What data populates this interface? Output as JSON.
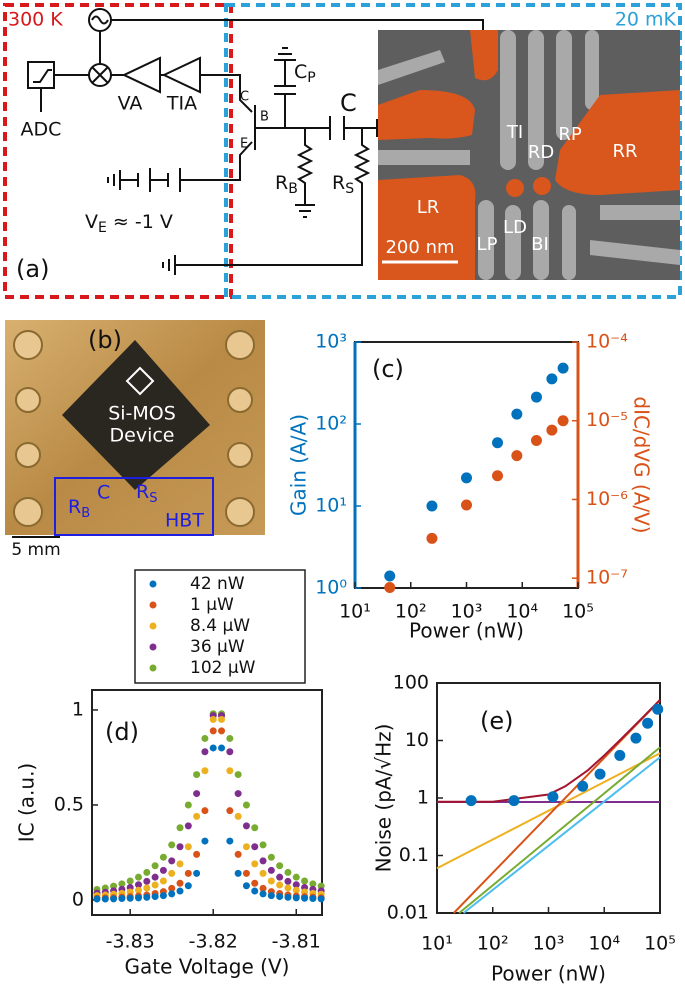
{
  "panel_a": {
    "label": "(a)",
    "room_temp": "300 K",
    "cold_temp": "20 mK",
    "adc": "ADC",
    "va": "VA",
    "tia": "TIA",
    "collector": "C",
    "base": "B",
    "emitter": "E",
    "cp": {
      "main": "C",
      "sub": "P"
    },
    "c": "C",
    "rb": {
      "main": "R",
      "sub": "B"
    },
    "rs": {
      "main": "R",
      "sub": "S"
    },
    "ve": {
      "main": "V",
      "sub": "E",
      "rest": " ≈ -1 V"
    },
    "sem_labels": [
      "TI",
      "RD",
      "RP",
      "RR",
      "LR",
      "LD",
      "LP",
      "BI"
    ],
    "scale_bar": "200 nm"
  },
  "panel_b": {
    "label": "(b)",
    "device": [
      "Si-MOS",
      "Device"
    ],
    "rb": {
      "main": "R",
      "sub": "B"
    },
    "c": "C",
    "rs": {
      "main": "R",
      "sub": "S"
    },
    "hbt": "HBT",
    "scale_bar": "5 mm"
  },
  "chart_data": [
    {
      "type": "scatter",
      "label": "(c)",
      "xlabel": "Power (nW)",
      "ylabel": "Gain (A/A)",
      "y2label": "dIC/dVG (A/V)",
      "xscale": "log",
      "yscale": "log",
      "y2scale": "log",
      "xlim": [
        10,
        100000
      ],
      "xticks": [
        {
          "value": 10,
          "label": "10¹"
        },
        {
          "value": 100,
          "label": "10²"
        },
        {
          "value": 1000,
          "label": "10³"
        },
        {
          "value": 10000,
          "label": "10⁴"
        },
        {
          "value": 100000,
          "label": "10⁵"
        }
      ],
      "ylim": [
        1,
        1000
      ],
      "yticks": [
        {
          "value": 1,
          "label": "10⁰"
        },
        {
          "value": 10,
          "label": "10¹"
        },
        {
          "value": 100,
          "label": "10²"
        },
        {
          "value": 1000,
          "label": "10³"
        }
      ],
      "y2lim": [
        7.5e-08,
        0.0001
      ],
      "y2ticks": [
        {
          "value": 1e-07,
          "label": "10⁻⁷"
        },
        {
          "value": 1e-06,
          "label": "10⁻⁶"
        },
        {
          "value": 1e-05,
          "label": "10⁻⁵"
        },
        {
          "value": 0.0001,
          "label": "10⁻⁴"
        }
      ],
      "x": [
        42,
        240,
        1000,
        3600,
        8000,
        18000,
        34000,
        54000
      ],
      "series": [
        {
          "color": "#0072bd",
          "values": [
            1.4,
            10,
            22,
            59,
            132,
            213,
            355,
            480
          ]
        },
        {
          "color": "#d95319",
          "axis": "y2",
          "values": [
            7.6e-08,
            3.2e-07,
            8.5e-07,
            2e-06,
            3.6e-06,
            5.6e-06,
            7.6e-06,
            1e-05
          ]
        }
      ]
    },
    {
      "type": "scatter",
      "label": "(d)",
      "xlabel": "Gate Voltage (V)",
      "ylabel": "IC (a.u.)",
      "xlim": [
        -3.8346,
        -3.8069
      ],
      "xticks": [
        -3.83,
        -3.82,
        -3.81
      ],
      "ylim": [
        -0.079,
        1.105
      ],
      "yticks": [
        0,
        0.5,
        1
      ],
      "legend": "top",
      "x": [
        -3.834,
        -3.833,
        -3.832,
        -3.831,
        -3.83,
        -3.829,
        -3.828,
        -3.827,
        -3.826,
        -3.825,
        -3.824,
        -3.823,
        -3.822,
        -3.821,
        -3.82,
        -3.819,
        -3.818,
        -3.817,
        -3.816,
        -3.815,
        -3.814,
        -3.813,
        -3.812,
        -3.811,
        -3.81,
        -3.809,
        -3.808,
        -3.807
      ],
      "series": [
        {
          "name": "42 nW",
          "color": "#0072bd",
          "values": [
            0.005,
            0.005,
            0.006,
            0.0075,
            0.009,
            0.011,
            0.014,
            0.018,
            0.023,
            0.032,
            0.047,
            0.075,
            0.14,
            0.31,
            0.8,
            0.8,
            0.31,
            0.14,
            0.075,
            0.047,
            0.032,
            0.023,
            0.018,
            0.014,
            0.011,
            0.009,
            0.0075,
            0.006
          ]
        },
        {
          "name": "1 μW",
          "color": "#d95319",
          "values": [
            0.009,
            0.011,
            0.012,
            0.015,
            0.018,
            0.021,
            0.026,
            0.034,
            0.044,
            0.061,
            0.088,
            0.14,
            0.24,
            0.47,
            0.89,
            0.89,
            0.47,
            0.24,
            0.14,
            0.088,
            0.061,
            0.044,
            0.034,
            0.026,
            0.021,
            0.018,
            0.015,
            0.012
          ]
        },
        {
          "name": "8.4 μW",
          "color": "#edb120",
          "values": [
            0.023,
            0.026,
            0.03,
            0.035,
            0.042,
            0.051,
            0.063,
            0.079,
            0.1,
            0.14,
            0.19,
            0.28,
            0.44,
            0.68,
            0.95,
            0.95,
            0.68,
            0.44,
            0.28,
            0.19,
            0.14,
            0.1,
            0.079,
            0.063,
            0.051,
            0.042,
            0.035,
            0.03
          ]
        },
        {
          "name": "36 μW",
          "color": "#7e2f8e",
          "values": [
            0.036,
            0.041,
            0.048,
            0.056,
            0.066,
            0.08,
            0.098,
            0.12,
            0.156,
            0.206,
            0.28,
            0.39,
            0.56,
            0.78,
            0.97,
            0.97,
            0.78,
            0.56,
            0.39,
            0.28,
            0.206,
            0.156,
            0.12,
            0.098,
            0.08,
            0.066,
            0.056,
            0.048
          ]
        },
        {
          "name": "102 μW",
          "color": "#77ac30",
          "values": [
            0.055,
            0.063,
            0.073,
            0.085,
            0.1,
            0.12,
            0.145,
            0.18,
            0.225,
            0.29,
            0.38,
            0.5,
            0.66,
            0.85,
            0.98,
            0.98,
            0.85,
            0.66,
            0.5,
            0.38,
            0.29,
            0.225,
            0.18,
            0.145,
            0.12,
            0.1,
            0.085,
            0.073
          ]
        }
      ]
    },
    {
      "type": "line",
      "label": "(e)",
      "xlabel": "Power (nW)",
      "ylabel": "Noise (pA/√Hz)",
      "xscale": "log",
      "yscale": "log",
      "xlim": [
        10,
        100000
      ],
      "xticks": [
        {
          "value": 10,
          "label": "10¹"
        },
        {
          "value": 100,
          "label": "10²"
        },
        {
          "value": 1000,
          "label": "10³"
        },
        {
          "value": 10000,
          "label": "10⁴"
        },
        {
          "value": 100000,
          "label": "10⁵"
        }
      ],
      "ylim": [
        0.01,
        100
      ],
      "yticks": [
        100,
        10,
        1,
        0.1,
        0.01
      ],
      "series": [
        {
          "color": "#7e2f8e",
          "x": [
            10,
            100000
          ],
          "values": [
            0.85,
            0.85
          ]
        },
        {
          "color": "#edb120",
          "x": [
            10,
            100000
          ],
          "values": [
            0.06,
            6
          ]
        },
        {
          "color": "#4dbeee",
          "x": [
            30,
            100000
          ],
          "values": [
            0.01,
            5.1
          ]
        },
        {
          "color": "#77ac30",
          "x": [
            25,
            100000
          ],
          "values": [
            0.01,
            7.6
          ]
        },
        {
          "color": "#d95319",
          "x": [
            20,
            100000
          ],
          "values": [
            0.01,
            50
          ]
        },
        {
          "color": "#a2142f",
          "x": [
            10,
            100,
            1000,
            2000,
            5000,
            10000,
            20000,
            50000,
            100000
          ],
          "values": [
            0.86,
            0.86,
            1.15,
            1.6,
            3,
            5.5,
            10.6,
            25.7,
            51
          ]
        },
        {
          "color": "#0072bd",
          "mode": "markers",
          "x": [
            41,
            240,
            1200,
            4100,
            8400,
            19000,
            37000,
            60000,
            91000
          ],
          "values": [
            0.9,
            0.9,
            1.05,
            1.6,
            2.6,
            5.5,
            11,
            20,
            35
          ]
        }
      ]
    }
  ]
}
